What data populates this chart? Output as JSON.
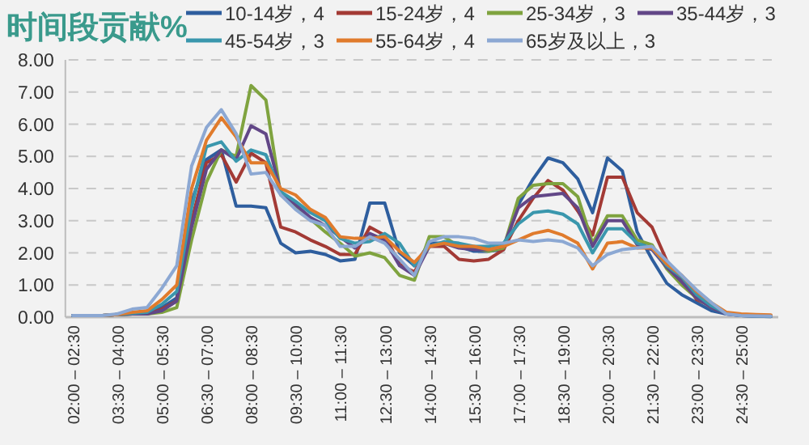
{
  "chart_data": {
    "type": "line",
    "title": "时间段贡献%",
    "categories": [
      "02:00 – 02:30",
      null,
      null,
      "03:30 – 04:00",
      null,
      null,
      "05:00 – 05:30",
      null,
      null,
      "06:30 – 07:00",
      null,
      null,
      "08:00 – 08:30",
      null,
      null,
      "09:30 – 10:00",
      null,
      null,
      "11:00 – 11:30",
      null,
      null,
      "12:30 – 13:00",
      null,
      null,
      "14:00 – 14:30",
      null,
      null,
      "15:30 – 16:00",
      null,
      null,
      "17:00 – 17:30",
      null,
      null,
      "18:30 – 19:00",
      null,
      null,
      "20:00 – 20:30",
      null,
      null,
      "21:30 – 22:00",
      null,
      null,
      "23:00 – 23:30",
      null,
      null,
      "24:30 – 25:00",
      null,
      null
    ],
    "ylim": [
      0,
      8
    ],
    "yticks": [
      {
        "value": 0,
        "label": "0.00"
      },
      {
        "value": 1,
        "label": "1.00"
      },
      {
        "value": 2,
        "label": "2.00"
      },
      {
        "value": 3,
        "label": "3.00"
      },
      {
        "value": 4,
        "label": "4.00"
      },
      {
        "value": 5,
        "label": "5.00"
      },
      {
        "value": 6,
        "label": "6.00"
      },
      {
        "value": 7,
        "label": "7.00"
      },
      {
        "value": 8,
        "label": "8.00"
      }
    ],
    "grid": "y",
    "legend": "top",
    "line_style": "solid",
    "marker": "none",
    "series": [
      {
        "name": "10-14岁，4",
        "color": "#2e5e9e",
        "values": [
          0.05,
          0.05,
          0.05,
          0.08,
          0.1,
          0.1,
          0.3,
          0.6,
          3.6,
          4.9,
          5.2,
          3.45,
          3.45,
          3.4,
          2.3,
          2.0,
          2.05,
          1.95,
          1.75,
          1.8,
          3.55,
          3.55,
          2.0,
          1.6,
          2.3,
          2.3,
          2.2,
          2.05,
          2.05,
          2.1,
          3.5,
          4.3,
          4.95,
          4.8,
          4.3,
          3.25,
          4.95,
          4.55,
          2.65,
          1.8,
          1.05,
          0.7,
          0.45,
          0.2,
          0.1,
          0.05,
          0.03,
          0.02
        ]
      },
      {
        "name": "15-24岁，4",
        "color": "#a33a35",
        "values": [
          0.05,
          0.05,
          0.05,
          0.08,
          0.1,
          0.1,
          0.25,
          0.5,
          3.0,
          4.8,
          5.05,
          4.2,
          5.1,
          4.8,
          2.8,
          2.65,
          2.4,
          2.2,
          1.95,
          1.95,
          2.8,
          2.55,
          1.65,
          1.4,
          2.2,
          2.2,
          1.8,
          1.75,
          1.8,
          2.1,
          3.0,
          3.7,
          4.25,
          3.95,
          3.3,
          2.55,
          4.35,
          4.35,
          3.25,
          2.8,
          1.75,
          1.2,
          0.55,
          0.35,
          0.12,
          0.08,
          0.06,
          0.05
        ]
      },
      {
        "name": "25-34岁，3",
        "color": "#7fa33f",
        "values": [
          null,
          null,
          0.05,
          0.08,
          0.1,
          0.1,
          0.15,
          0.3,
          2.4,
          4.2,
          5.2,
          5.0,
          7.2,
          6.75,
          3.8,
          3.45,
          3.05,
          2.65,
          2.3,
          1.9,
          2.0,
          1.85,
          1.3,
          1.15,
          2.5,
          2.5,
          2.2,
          2.15,
          2.05,
          2.15,
          3.7,
          4.1,
          4.15,
          4.15,
          3.75,
          2.3,
          3.15,
          3.15,
          2.4,
          2.25,
          1.5,
          1.0,
          0.6,
          0.3,
          0.12,
          null,
          null,
          null
        ]
      },
      {
        "name": "35-44岁，3",
        "color": "#624787",
        "values": [
          0.05,
          0.05,
          0.05,
          0.08,
          0.1,
          0.1,
          0.2,
          0.5,
          2.8,
          4.6,
          5.2,
          4.9,
          5.95,
          5.7,
          3.9,
          3.5,
          3.1,
          2.85,
          2.5,
          2.15,
          2.6,
          2.4,
          1.6,
          1.3,
          2.2,
          2.3,
          2.15,
          2.1,
          2.1,
          2.2,
          3.4,
          3.75,
          3.8,
          3.85,
          3.4,
          2.2,
          3.0,
          3.0,
          2.25,
          2.1,
          1.55,
          1.1,
          0.6,
          0.3,
          0.1,
          0.05,
          0.04,
          0.03
        ]
      },
      {
        "name": "45-54岁，3",
        "color": "#3a97ad",
        "values": [
          0.05,
          0.05,
          0.05,
          0.08,
          0.12,
          0.15,
          0.4,
          0.8,
          3.4,
          5.3,
          5.45,
          4.85,
          5.2,
          5.05,
          3.9,
          3.6,
          3.25,
          3.0,
          2.45,
          2.3,
          2.35,
          2.6,
          2.3,
          1.6,
          2.2,
          2.35,
          2.3,
          2.2,
          2.2,
          2.3,
          2.9,
          3.25,
          3.3,
          3.2,
          2.9,
          2.0,
          2.75,
          2.75,
          2.3,
          2.15,
          1.6,
          1.25,
          0.7,
          0.35,
          0.12,
          0.05,
          0.04,
          0.03
        ]
      },
      {
        "name": "55-64岁，4",
        "color": "#e07b2c",
        "values": [
          null,
          null,
          0.05,
          0.08,
          0.15,
          0.2,
          0.55,
          1.0,
          4.0,
          5.5,
          6.2,
          5.6,
          4.8,
          4.8,
          4.0,
          3.8,
          3.35,
          3.1,
          2.5,
          2.45,
          2.45,
          2.5,
          2.05,
          1.7,
          2.2,
          2.3,
          2.2,
          2.2,
          2.1,
          2.2,
          2.4,
          2.6,
          2.7,
          2.55,
          2.3,
          1.5,
          2.3,
          2.35,
          2.15,
          2.15,
          1.65,
          1.3,
          0.8,
          0.45,
          0.15,
          0.1,
          0.08,
          0.07
        ]
      },
      {
        "name": "65岁及以上，3",
        "color": "#8ca8d3",
        "values": [
          0.05,
          0.05,
          0.05,
          0.1,
          0.25,
          0.3,
          0.9,
          1.6,
          4.7,
          5.9,
          6.45,
          5.7,
          4.45,
          4.5,
          3.8,
          3.35,
          3.0,
          2.85,
          2.2,
          2.2,
          2.5,
          2.3,
          1.8,
          1.3,
          2.35,
          2.5,
          2.5,
          2.45,
          2.3,
          2.3,
          2.4,
          2.35,
          2.4,
          2.35,
          2.15,
          1.6,
          1.95,
          2.1,
          2.15,
          2.2,
          1.75,
          1.3,
          0.85,
          0.45,
          0.1,
          0.05,
          0.04,
          0.03
        ]
      }
    ]
  }
}
